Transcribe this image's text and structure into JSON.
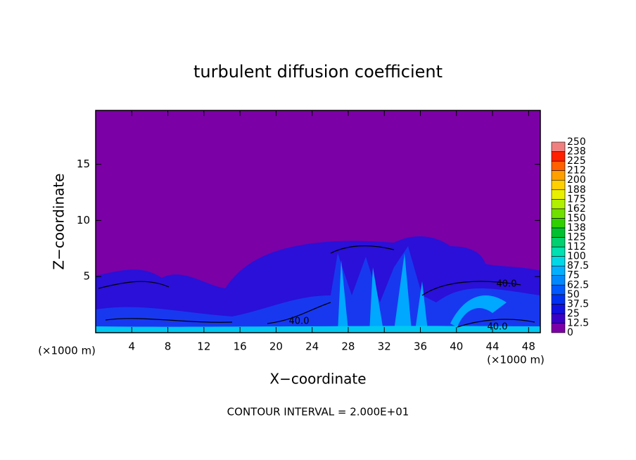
{
  "chart_data": {
    "type": "contour",
    "title": "turbulent diffusion coefficient",
    "x_label": "X−coordinate",
    "y_label": "Z−coordinate",
    "x_unit": "(×1000 m)",
    "xlim": [
      0,
      49.3
    ],
    "ylim": [
      0,
      19.8
    ],
    "xticks": [
      4,
      8,
      12,
      16,
      20,
      24,
      28,
      32,
      36,
      40,
      44,
      48
    ],
    "yticks": [
      5,
      10,
      15
    ],
    "levels": [
      0,
      12.5,
      25,
      37.5,
      50,
      62.5,
      75,
      87.5,
      100,
      {
        "value": 112.5,
        "label": "112"
      },
      125,
      {
        "value": 137.5,
        "label": "138"
      },
      150,
      {
        "value": 162.5,
        "label": "162"
      },
      175,
      {
        "value": 187.5,
        "label": "188"
      },
      200,
      {
        "value": 212.5,
        "label": "212"
      },
      225,
      {
        "value": 237.5,
        "label": "238"
      },
      250
    ],
    "colors": [
      "#7b00a6",
      "#3a00c8",
      "#1010e0",
      "#0030f0",
      "#0058ff",
      "#0088ff",
      "#00b0ff",
      "#00d8e8",
      "#00e0b0",
      "#00d070",
      "#00c030",
      "#30d000",
      "#70e000",
      "#b0f000",
      "#e8f000",
      "#ffd000",
      "#ffa000",
      "#ff6000",
      "#ff2000",
      "#f08080"
    ],
    "contour_labels": [
      "40.0",
      "40.0",
      "40.0"
    ],
    "footnote": "CONTOUR INTERVAL = 2.000E+01"
  }
}
